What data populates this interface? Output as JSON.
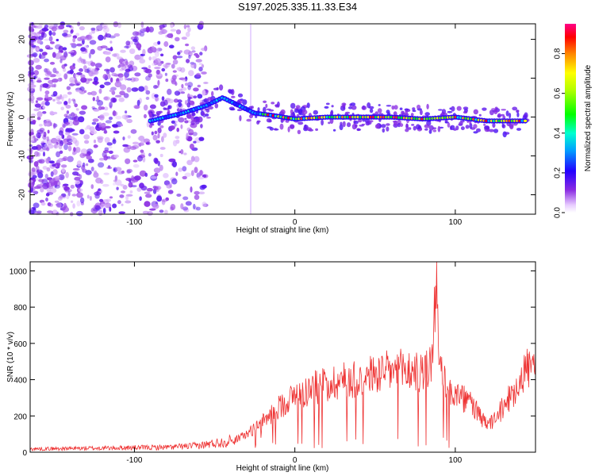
{
  "title": "S197.2025.335.11.33.E34",
  "chart_data": [
    {
      "type": "heatmap",
      "name": "spectrogram",
      "xlabel": "Height of straight line (km)",
      "ylabel": "Frequency (Hz)",
      "xlim": [
        -165,
        150
      ],
      "ylim": [
        -25,
        24
      ],
      "x_ticks": [
        -100,
        0,
        100
      ],
      "y_ticks": [
        -20,
        -10,
        0,
        10,
        20
      ],
      "colorbar": {
        "label": "Normalized spectral amplitude",
        "range": [
          0,
          0.95
        ],
        "ticks": [
          0.0,
          0.2,
          0.4,
          0.6,
          0.8
        ]
      },
      "ridge": {
        "description": "dominant frequency track",
        "x": [
          -90,
          -70,
          -55,
          -45,
          -35,
          -25,
          -15,
          0,
          20,
          40,
          60,
          80,
          100,
          120,
          145
        ],
        "y": [
          -1,
          1,
          3,
          5,
          3,
          1,
          0.5,
          -0.5,
          0,
          0,
          0,
          -0.5,
          0,
          -1,
          -1
        ]
      }
    },
    {
      "type": "line",
      "name": "snr",
      "xlabel": "Height of straight line (km)",
      "ylabel": "SNR (10 * v/v)",
      "xlim": [
        -165,
        150
      ],
      "ylim": [
        0,
        1050
      ],
      "x_ticks": [
        -100,
        0,
        100
      ],
      "y_ticks": [
        0,
        200,
        400,
        600,
        800,
        1000
      ],
      "color": "#ee3333",
      "envelope": {
        "x": [
          -165,
          -120,
          -80,
          -60,
          -40,
          -30,
          -20,
          -10,
          0,
          10,
          20,
          30,
          40,
          50,
          60,
          70,
          80,
          85,
          88,
          90,
          95,
          100,
          110,
          115,
          120,
          125,
          130,
          140,
          145,
          150
        ],
        "y": [
          20,
          25,
          30,
          40,
          70,
          120,
          200,
          300,
          380,
          420,
          460,
          480,
          500,
          520,
          540,
          550,
          520,
          600,
          1050,
          560,
          440,
          380,
          330,
          240,
          180,
          220,
          300,
          480,
          570,
          570
        ]
      }
    }
  ]
}
